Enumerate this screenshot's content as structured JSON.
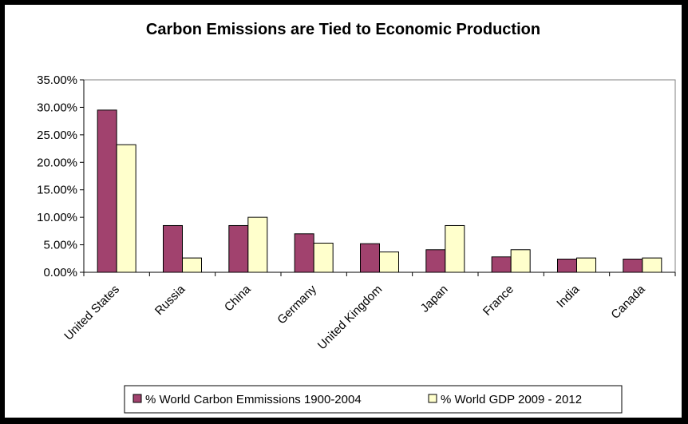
{
  "chart_data": {
    "type": "bar",
    "title": "Carbon Emissions are Tied to Economic Production",
    "categories": [
      "United States",
      "Russia",
      "China",
      "Germany",
      "United Kingdom",
      "Japan",
      "France",
      "India",
      "Canada"
    ],
    "series": [
      {
        "name": "% World Carbon Emmissions 1900-2004",
        "color": "#a1426e",
        "values": [
          29.5,
          8.5,
          8.5,
          7.0,
          5.2,
          4.1,
          2.8,
          2.4,
          2.4
        ]
      },
      {
        "name": "% World GDP 2009 - 2012",
        "color": "#ffffcc",
        "values": [
          23.2,
          2.6,
          10.0,
          5.3,
          3.7,
          8.5,
          4.1,
          2.6,
          2.6
        ]
      }
    ],
    "ylim": [
      0,
      35
    ],
    "yticks": [
      "0.00%",
      "5.00%",
      "10.00%",
      "15.00%",
      "20.00%",
      "25.00%",
      "30.00%",
      "35.00%"
    ],
    "grid": false,
    "legend_position": "bottom"
  }
}
